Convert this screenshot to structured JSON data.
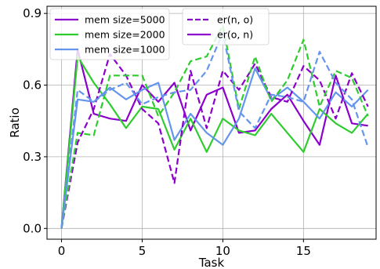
{
  "chart_data": {
    "type": "line",
    "title": "",
    "xlabel": "Task",
    "ylabel": "Ratio",
    "xlim": [
      -0.9,
      19.5
    ],
    "ylim": [
      -0.045,
      0.93
    ],
    "xticks": [
      0,
      5,
      10,
      15
    ],
    "yticks": [
      0.0,
      0.3,
      0.6,
      0.9
    ],
    "xtick_labels": [
      "0",
      "5",
      "10",
      "15"
    ],
    "ytick_labels": [
      "0.0",
      "0.3",
      "0.6",
      "0.9"
    ],
    "grid": true,
    "legend_placement": "top-left",
    "x": [
      0,
      1,
      2,
      3,
      4,
      5,
      6,
      7,
      8,
      9,
      10,
      11,
      12,
      13,
      14,
      15,
      16,
      17,
      18,
      19
    ],
    "series": [
      {
        "name": "mem size=5000",
        "group": "mem_size",
        "color": "#8B00CC",
        "dash": "solid",
        "show": "solid",
        "values": [
          0.0,
          0.75,
          0.48,
          0.46,
          0.45,
          0.6,
          0.53,
          0.61,
          0.41,
          0.56,
          0.59,
          0.4,
          0.41,
          0.5,
          0.56,
          0.45,
          0.35,
          0.64,
          0.44,
          0.43
        ]
      },
      {
        "name": "mem size=2000",
        "group": "mem_size",
        "color": "#2ECC2E",
        "dash": "solid",
        "show": "solid",
        "values": [
          0.0,
          0.72,
          0.61,
          0.52,
          0.42,
          0.51,
          0.5,
          0.33,
          0.46,
          0.32,
          0.46,
          0.41,
          0.39,
          0.48,
          0.4,
          0.32,
          0.5,
          0.44,
          0.4,
          0.48
        ]
      },
      {
        "name": "mem size=1000",
        "group": "mem_size",
        "color": "#6495ED",
        "dash": "solid",
        "show": "solid",
        "values": [
          0.0,
          0.54,
          0.53,
          0.59,
          0.54,
          0.58,
          0.61,
          0.37,
          0.48,
          0.4,
          0.35,
          0.46,
          0.67,
          0.54,
          0.59,
          0.53,
          0.46,
          0.57,
          0.51,
          0.58
        ]
      },
      {
        "name": "",
        "group": "mem_size",
        "color": "#8B00CC",
        "dash": "dashed",
        "values": [
          0.0,
          0.36,
          0.5,
          0.73,
          0.64,
          0.5,
          0.44,
          0.19,
          0.66,
          0.42,
          0.66,
          0.58,
          0.69,
          0.55,
          0.53,
          0.68,
          0.62,
          0.46,
          0.65,
          0.51
        ]
      },
      {
        "name": "",
        "group": "mem_size",
        "color": "#2ECC2E",
        "dash": "dashed",
        "values": [
          0.0,
          0.4,
          0.39,
          0.64,
          0.64,
          0.64,
          0.47,
          0.57,
          0.7,
          0.72,
          0.85,
          0.5,
          0.72,
          0.53,
          0.62,
          0.79,
          0.51,
          0.66,
          0.63,
          0.47
        ]
      },
      {
        "name": "",
        "group": "mem_size",
        "color": "#6495ED",
        "dash": "dashed",
        "values": [
          0.0,
          0.58,
          0.53,
          0.58,
          0.61,
          0.52,
          0.55,
          0.57,
          0.58,
          0.66,
          0.82,
          0.49,
          0.42,
          0.56,
          0.55,
          0.53,
          0.74,
          0.61,
          0.54,
          0.34
        ]
      }
    ],
    "legend1": [
      {
        "label": "mem size=5000",
        "color": "#8B00CC",
        "dash": "solid"
      },
      {
        "label": "mem size=2000",
        "color": "#2ECC2E",
        "dash": "solid"
      },
      {
        "label": "mem size=1000",
        "color": "#6495ED",
        "dash": "solid"
      }
    ],
    "legend2": [
      {
        "label": "er(n, o)",
        "color": "#8B00CC",
        "dash": "dashed"
      },
      {
        "label": "er(o, n)",
        "color": "#8B00CC",
        "dash": "solid"
      }
    ]
  }
}
